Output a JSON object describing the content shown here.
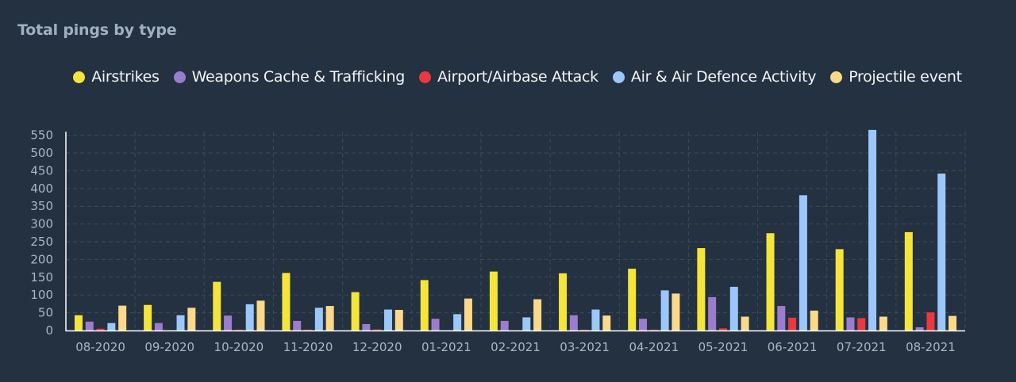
{
  "panel": {
    "title": "Total pings by type"
  },
  "chart_data": {
    "type": "bar",
    "title": "Total pings by type",
    "xlabel": "",
    "ylabel": "",
    "ylim": [
      0,
      560
    ],
    "yticks": [
      0,
      50,
      100,
      150,
      200,
      250,
      300,
      350,
      400,
      450,
      500,
      550
    ],
    "grid": true,
    "legend_position": "top-center",
    "categories": [
      "08-2020",
      "09-2020",
      "10-2020",
      "11-2020",
      "12-2020",
      "01-2021",
      "02-2021",
      "03-2021",
      "04-2021",
      "05-2021",
      "06-2021",
      "07-2021",
      "08-2021"
    ],
    "series": [
      {
        "name": "Airstrikes",
        "color": "#f5e53a",
        "values": [
          43,
          72,
          137,
          162,
          108,
          142,
          166,
          161,
          174,
          232,
          274,
          229,
          277
        ]
      },
      {
        "name": "Weapons Cache & Trafficking",
        "color": "#9c7ccc",
        "values": [
          25,
          21,
          42,
          27,
          18,
          33,
          27,
          43,
          33,
          94,
          69,
          37,
          9
        ]
      },
      {
        "name": "Airport/Airbase Attack",
        "color": "#e8393f",
        "values": [
          5,
          0,
          2,
          2,
          3,
          0,
          0,
          2,
          2,
          6,
          36,
          35,
          51
        ]
      },
      {
        "name": "Air & Air Defence Activity",
        "color": "#9cc7fb",
        "values": [
          21,
          43,
          74,
          64,
          59,
          46,
          37,
          59,
          113,
          123,
          381,
          565,
          442
        ]
      },
      {
        "name": "Projectile event",
        "color": "#fcd98a",
        "values": [
          70,
          64,
          84,
          69,
          58,
          90,
          88,
          42,
          104,
          39,
          56,
          39,
          41
        ]
      }
    ]
  }
}
